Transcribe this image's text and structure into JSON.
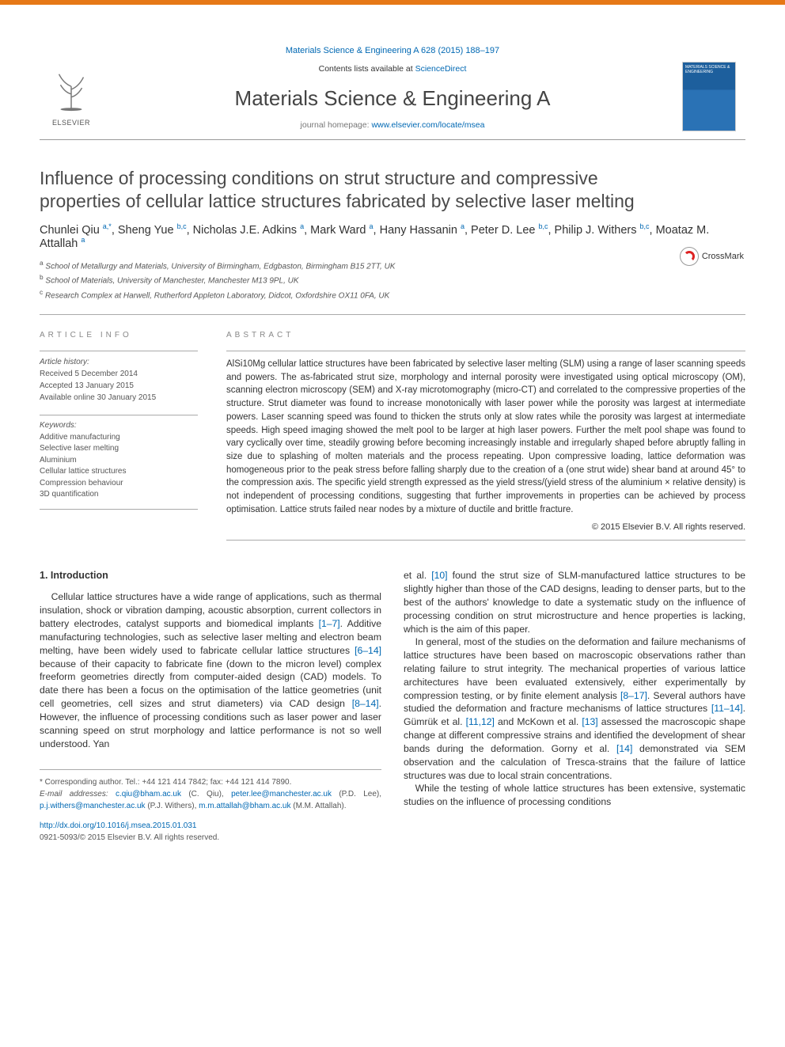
{
  "journal": {
    "ref": "Materials Science & Engineering A 628 (2015) 188–197",
    "contents_prefix": "Contents lists available at ",
    "contents_link": "ScienceDirect",
    "name": "Materials Science & Engineering A",
    "homepage_prefix": "journal homepage: ",
    "homepage_link": "www.elsevier.com/locate/msea",
    "publisher_label": "ELSEVIER",
    "cover_text": "MATERIALS SCIENCE & ENGINEERING"
  },
  "crossmark": "CrossMark",
  "article": {
    "title": "Influence of processing conditions on strut structure and compressive properties of cellular lattice structures fabricated by selective laser melting",
    "authors_html": "Chunlei Qiu <sup>a,*</sup>, Sheng Yue <sup>b,c</sup>, Nicholas J.E. Adkins <sup>a</sup>, Mark Ward <sup>a</sup>, Hany Hassanin <sup>a</sup>, Peter D. Lee <sup>b,c</sup>, Philip J. Withers <sup>b,c</sup>, Moataz M. Attallah <sup>a</sup>",
    "affiliations": [
      "a School of Metallurgy and Materials, University of Birmingham, Edgbaston, Birmingham B15 2TT, UK",
      "b School of Materials, University of Manchester, Manchester M13 9PL, UK",
      "c Research Complex at Harwell, Rutherford Appleton Laboratory, Didcot, Oxfordshire OX11 0FA, UK"
    ]
  },
  "info": {
    "head": "article info",
    "history_label": "Article history:",
    "history": [
      "Received 5 December 2014",
      "Accepted 13 January 2015",
      "Available online 30 January 2015"
    ],
    "keywords_label": "Keywords:",
    "keywords": [
      "Additive manufacturing",
      "Selective laser melting",
      "Aluminium",
      "Cellular lattice structures",
      "Compression behaviour",
      "3D quantification"
    ]
  },
  "abstract": {
    "head": "abstract",
    "body": "AlSi10Mg cellular lattice structures have been fabricated by selective laser melting (SLM) using a range of laser scanning speeds and powers. The as-fabricated strut size, morphology and internal porosity were investigated using optical microscopy (OM), scanning electron microscopy (SEM) and X-ray microtomography (micro-CT) and correlated to the compressive properties of the structure. Strut diameter was found to increase monotonically with laser power while the porosity was largest at intermediate powers. Laser scanning speed was found to thicken the struts only at slow rates while the porosity was largest at intermediate speeds. High speed imaging showed the melt pool to be larger at high laser powers. Further the melt pool shape was found to vary cyclically over time, steadily growing before becoming increasingly instable and irregularly shaped before abruptly falling in size due to splashing of molten materials and the process repeating. Upon compressive loading, lattice deformation was homogeneous prior to the peak stress before falling sharply due to the creation of a (one strut wide) shear band at around 45° to the compression axis. The specific yield strength expressed as the yield stress/(yield stress of the aluminium × relative density) is not independent of processing conditions, suggesting that further improvements in properties can be achieved by process optimisation. Lattice struts failed near nodes by a mixture of ductile and brittle fracture.",
    "copyright": "© 2015 Elsevier B.V. All rights reserved."
  },
  "body": {
    "section_head": "1. Introduction",
    "col1_p1a": "Cellular lattice structures have a wide range of applications, such as thermal insulation, shock or vibration damping, acoustic absorption, current collectors in battery electrodes, catalyst supports and biomedical implants ",
    "ref_1_7": "[1–7]",
    "col1_p1b": ". Additive manufacturing technologies, such as selective laser melting and electron beam melting, have been widely used to fabricate cellular lattice structures ",
    "ref_6_14": "[6–14]",
    "col1_p1c": " because of their capacity to fabricate fine (down to the micron level) complex freeform geometries directly from computer-aided design (CAD) models. To date there has been a focus on the optimisation of the lattice geometries (unit cell geometries, cell sizes and strut diameters) via CAD design ",
    "ref_8_14": "[8–14]",
    "col1_p1d": ". However, the influence of processing conditions such as laser power and laser scanning speed on strut morphology and lattice performance is not so well understood. Yan",
    "col2_p1a": "et al. ",
    "ref_10": "[10]",
    "col2_p1b": " found the strut size of SLM-manufactured lattice structures to be slightly higher than those of the CAD designs, leading to denser parts, but to the best of the authors' knowledge to date a systematic study on the influence of processing condition on strut microstructure and hence properties is lacking, which is the aim of this paper.",
    "col2_p2a": "In general, most of the studies on the deformation and failure mechanisms of lattice structures have been based on macroscopic observations rather than relating failure to strut integrity. The mechanical properties of various lattice architectures have been evaluated extensively, either experimentally by compression testing, or by finite element analysis ",
    "ref_8_17": "[8–17]",
    "col2_p2b": ". Several authors have studied the deformation and fracture mechanisms of lattice structures ",
    "ref_11_14": "[11–14]",
    "col2_p2c": ". Gümrük et al. ",
    "ref_11_12": "[11,12]",
    "col2_p2d": " and McKown et al. ",
    "ref_13": "[13]",
    "col2_p2e": " assessed the macroscopic shape change at different compressive strains and identified the development of shear bands during the deformation. Gorny et al. ",
    "ref_14": "[14]",
    "col2_p2f": " demonstrated via SEM observation and the calculation of Tresca-strains that the failure of lattice structures was due to local strain concentrations.",
    "col2_p3": "While the testing of whole lattice structures has been extensive, systematic studies on the influence of processing conditions"
  },
  "footer": {
    "corr": "* Corresponding author. Tel.: +44 121 414 7842; fax: +44 121 414 7890.",
    "email_label": "E-mail addresses: ",
    "emails": [
      {
        "addr": "c.qiu@bham.ac.uk",
        "who": " (C. Qiu),"
      },
      {
        "addr": "peter.lee@manchester.ac.uk",
        "who": " (P.D. Lee), "
      },
      {
        "addr": "p.j.withers@manchester.ac.uk",
        "who": " (P.J. Withers),"
      },
      {
        "addr": "m.m.attallah@bham.ac.uk",
        "who": " (M.M. Attallah)."
      }
    ],
    "doi": "http://dx.doi.org/10.1016/j.msea.2015.01.031",
    "issn": "0921-5093/© 2015 Elsevier B.V. All rights reserved."
  },
  "colors": {
    "accent": "#e67817",
    "link": "#0068b3",
    "text": "#333333",
    "muted": "#777777",
    "border": "#aaaaaa"
  }
}
